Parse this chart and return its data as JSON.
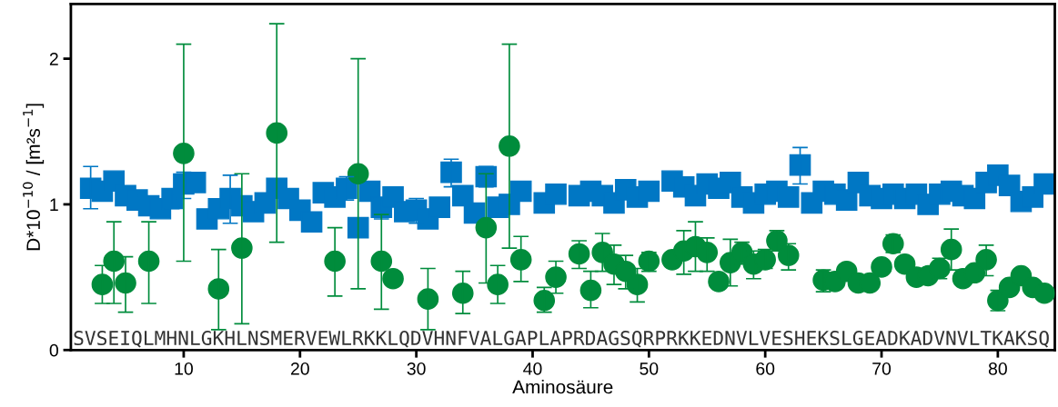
{
  "chart_data": {
    "type": "scatter",
    "xlabel": "Aminosäure",
    "ylabel": "D*10$^{−10}$ / [m²s$^{−1}$]",
    "xlim": [
      0.3,
      84.9
    ],
    "ylim": [
      0,
      2.375
    ],
    "xticks": [
      10,
      20,
      30,
      40,
      50,
      60,
      70,
      80
    ],
    "yticks": [
      0,
      1,
      2
    ],
    "grid": false,
    "legend": false,
    "annotations": [
      "SVSEIQLMHNLGKHLNSMERVEWLRKKLQDVHNFVALGAPLAPRDAGSQRPRKKEDNVLVESHEKSLGEADKADVNVLTKAKSQ"
    ],
    "series": [
      {
        "color": "#0077c4",
        "marker": "square",
        "x": [
          2,
          3,
          4,
          5,
          6,
          7,
          8,
          9,
          10,
          11,
          12,
          13,
          14,
          15,
          16,
          17,
          18,
          19,
          20,
          21,
          22,
          23,
          24,
          25,
          26,
          27,
          28,
          29,
          30,
          31,
          32,
          33,
          34,
          35,
          36,
          37,
          38,
          39,
          41,
          42,
          44,
          45,
          46,
          47,
          48,
          49,
          50,
          52,
          53,
          54,
          55,
          56,
          57,
          58,
          59,
          60,
          61,
          62,
          63,
          64,
          65,
          66,
          67,
          68,
          69,
          70,
          71,
          72,
          73,
          74,
          75,
          76,
          77,
          78,
          79,
          80,
          81,
          82,
          83,
          84
        ],
        "values": [
          1.11,
          1.09,
          1.16,
          1.06,
          1.03,
          0.99,
          0.97,
          1.04,
          1.14,
          1.15,
          0.9,
          0.97,
          1.04,
          0.99,
          0.95,
          1.01,
          1.11,
          1.04,
          0.96,
          0.88,
          1.08,
          1.05,
          1.11,
          0.84,
          1.09,
          0.98,
          1.05,
          0.95,
          0.96,
          0.9,
          0.98,
          1.22,
          1.06,
          0.94,
          1.19,
          0.98,
          1.0,
          1.09,
          1.01,
          1.07,
          1.06,
          1.09,
          1.06,
          1.01,
          1.1,
          1.05,
          1.09,
          1.16,
          1.12,
          1.06,
          1.14,
          1.11,
          1.15,
          1.05,
          1.01,
          1.07,
          1.09,
          1.05,
          1.27,
          1.01,
          1.09,
          1.07,
          1.03,
          1.15,
          1.06,
          1.04,
          1.07,
          1.04,
          1.07,
          1.0,
          1.07,
          1.09,
          1.06,
          1.04,
          1.15,
          1.2,
          1.13,
          1.02,
          1.05,
          1.14
        ],
        "errors": [
          [
            0.97,
            1.26
          ],
          null,
          null,
          null,
          null,
          null,
          null,
          [
            0.97,
            1.1
          ],
          [
            1.04,
            1.22
          ],
          null,
          null,
          null,
          [
            0.87,
            1.2
          ],
          null,
          null,
          null,
          null,
          null,
          null,
          null,
          null,
          null,
          [
            1.03,
            1.19
          ],
          null,
          null,
          [
            0.9,
            1.04
          ],
          null,
          null,
          [
            0.87,
            1.04
          ],
          null,
          null,
          [
            1.12,
            1.31
          ],
          null,
          null,
          [
            1.12,
            1.26
          ],
          null,
          null,
          null,
          null,
          null,
          null,
          null,
          null,
          null,
          null,
          null,
          null,
          null,
          null,
          null,
          null,
          null,
          null,
          null,
          null,
          null,
          null,
          null,
          [
            1.14,
            1.39
          ],
          null,
          null,
          null,
          null,
          null,
          null,
          null,
          null,
          null,
          null,
          null,
          null,
          null,
          null,
          null,
          null,
          null,
          null,
          null,
          null,
          null
        ]
      },
      {
        "color": "#008c3c",
        "marker": "circle",
        "x": [
          3,
          4,
          5,
          7,
          10,
          13,
          15,
          18,
          23,
          25,
          27,
          28,
          31,
          34,
          36,
          37,
          38,
          39,
          41,
          42,
          44,
          45,
          46,
          47,
          48,
          49,
          50,
          52,
          53,
          54,
          55,
          56,
          57,
          58,
          59,
          60,
          61,
          62,
          65,
          66,
          67,
          68,
          69,
          70,
          71,
          72,
          73,
          74,
          75,
          76,
          77,
          78,
          79,
          80,
          81,
          82,
          83,
          84
        ],
        "values": [
          0.45,
          0.61,
          0.46,
          0.61,
          1.35,
          0.42,
          0.7,
          1.49,
          0.61,
          1.21,
          0.61,
          0.49,
          0.35,
          0.39,
          0.84,
          0.45,
          1.4,
          0.62,
          0.34,
          0.5,
          0.66,
          0.41,
          0.67,
          0.59,
          0.54,
          0.45,
          0.61,
          0.62,
          0.68,
          0.71,
          0.67,
          0.47,
          0.6,
          0.67,
          0.59,
          0.62,
          0.75,
          0.65,
          0.48,
          0.47,
          0.54,
          0.46,
          0.46,
          0.57,
          0.73,
          0.59,
          0.5,
          0.51,
          0.56,
          0.69,
          0.49,
          0.53,
          0.62,
          0.34,
          0.43,
          0.51,
          0.43,
          0.39
        ],
        "errors": [
          [
            0.32,
            0.58
          ],
          [
            0.32,
            0.88
          ],
          [
            0.26,
            0.64
          ],
          [
            0.32,
            0.88
          ],
          [
            0.61,
            2.1
          ],
          [
            0.14,
            0.69
          ],
          [
            0.18,
            1.21
          ],
          [
            0.74,
            2.24
          ],
          [
            0.37,
            0.84
          ],
          [
            0.42,
            2.0
          ],
          [
            0.28,
            0.93
          ],
          null,
          [
            0.14,
            0.56
          ],
          [
            0.25,
            0.54
          ],
          [
            0.46,
            1.21
          ],
          [
            0.32,
            0.58
          ],
          [
            0.7,
            2.1
          ],
          [
            0.47,
            0.78
          ],
          [
            0.26,
            0.43
          ],
          [
            0.39,
            0.61
          ],
          [
            0.56,
            0.75
          ],
          [
            0.29,
            0.54
          ],
          [
            0.54,
            0.8
          ],
          [
            0.45,
            0.72
          ],
          [
            0.42,
            0.65
          ],
          [
            0.33,
            0.56
          ],
          [
            0.54,
            0.67
          ],
          null,
          [
            0.52,
            0.82
          ],
          [
            0.54,
            0.88
          ],
          [
            0.54,
            0.77
          ],
          null,
          [
            0.44,
            0.76
          ],
          [
            0.59,
            0.74
          ],
          [
            0.49,
            0.68
          ],
          [
            0.56,
            0.69
          ],
          [
            0.68,
            0.82
          ],
          [
            0.55,
            0.73
          ],
          [
            0.4,
            0.55
          ],
          null,
          null,
          null,
          null,
          null,
          [
            0.67,
            0.79
          ],
          null,
          null,
          null,
          [
            0.49,
            0.63
          ],
          [
            0.55,
            0.83
          ],
          null,
          null,
          [
            0.51,
            0.72
          ],
          [
            0.27,
            0.41
          ],
          null,
          null,
          null,
          null
        ]
      }
    ]
  }
}
